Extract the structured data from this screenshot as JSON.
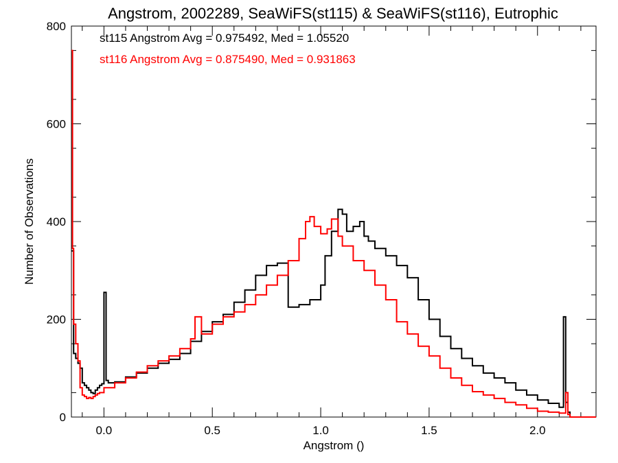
{
  "chart_data": {
    "type": "line",
    "title": "Angstrom, 2002289, SeaWiFS(st115) & SeaWiFS(st116), Eutrophic",
    "xlabel": "Angstrom ()",
    "ylabel": "Number of Observations",
    "xlim": [
      -0.15,
      2.27
    ],
    "ylim": [
      0,
      800
    ],
    "x_ticks": [
      0.0,
      0.5,
      1.0,
      1.5,
      2.0
    ],
    "x_tick_labels": [
      "0.0",
      "0.5",
      "1.0",
      "1.5",
      "2.0"
    ],
    "y_ticks": [
      0,
      200,
      400,
      600,
      800
    ],
    "y_tick_labels": [
      "0",
      "200",
      "400",
      "600",
      "800"
    ],
    "grid": false,
    "legend": "top-left",
    "annotations": [
      {
        "text": "st115 Angstrom Avg = 0.975492, Med = 1.05520",
        "color": "#000000"
      },
      {
        "text": "st116 Angstrom Avg = 0.875490, Med = 0.931863",
        "color": "#ff0000"
      }
    ],
    "series": [
      {
        "color": "#000000",
        "x": [
          -0.15,
          -0.14,
          -0.13,
          -0.12,
          -0.11,
          -0.1,
          -0.09,
          -0.08,
          -0.07,
          -0.06,
          -0.05,
          -0.04,
          -0.03,
          -0.02,
          -0.01,
          0.0,
          0.01,
          0.02,
          0.05,
          0.1,
          0.15,
          0.2,
          0.25,
          0.3,
          0.35,
          0.4,
          0.45,
          0.5,
          0.55,
          0.6,
          0.65,
          0.7,
          0.75,
          0.8,
          0.85,
          0.9,
          0.95,
          1.0,
          1.02,
          1.05,
          1.08,
          1.1,
          1.12,
          1.15,
          1.18,
          1.2,
          1.22,
          1.25,
          1.3,
          1.35,
          1.4,
          1.45,
          1.5,
          1.55,
          1.6,
          1.65,
          1.7,
          1.75,
          1.8,
          1.85,
          1.9,
          1.95,
          2.0,
          2.05,
          2.1,
          2.12,
          2.13,
          2.14,
          2.15,
          2.16,
          2.2,
          2.27
        ],
        "y": [
          340,
          130,
          120,
          110,
          100,
          70,
          65,
          60,
          55,
          50,
          48,
          55,
          60,
          65,
          68,
          255,
          75,
          70,
          72,
          82,
          90,
          100,
          110,
          118,
          130,
          155,
          175,
          195,
          210,
          235,
          260,
          290,
          310,
          315,
          225,
          230,
          240,
          270,
          330,
          380,
          425,
          415,
          380,
          390,
          400,
          370,
          360,
          345,
          330,
          310,
          285,
          240,
          200,
          165,
          140,
          120,
          105,
          90,
          80,
          70,
          55,
          45,
          35,
          28,
          20,
          205,
          30,
          10,
          0,
          0,
          0,
          0
        ]
      },
      {
        "color": "#ff0000",
        "x": [
          -0.15,
          -0.145,
          -0.14,
          -0.13,
          -0.12,
          -0.11,
          -0.1,
          -0.09,
          -0.08,
          -0.07,
          -0.06,
          -0.05,
          -0.04,
          -0.03,
          -0.02,
          0.0,
          0.05,
          0.1,
          0.15,
          0.2,
          0.25,
          0.3,
          0.35,
          0.4,
          0.42,
          0.45,
          0.5,
          0.55,
          0.6,
          0.65,
          0.7,
          0.75,
          0.8,
          0.85,
          0.9,
          0.93,
          0.95,
          0.97,
          1.0,
          1.03,
          1.05,
          1.08,
          1.1,
          1.15,
          1.2,
          1.25,
          1.3,
          1.35,
          1.4,
          1.45,
          1.5,
          1.55,
          1.6,
          1.65,
          1.7,
          1.75,
          1.8,
          1.85,
          1.9,
          1.95,
          2.0,
          2.05,
          2.1,
          2.13,
          2.14,
          2.15,
          2.16,
          2.2,
          2.27
        ],
        "y": [
          750,
          345,
          190,
          150,
          115,
          60,
          45,
          42,
          38,
          40,
          38,
          42,
          45,
          48,
          50,
          60,
          70,
          80,
          92,
          105,
          115,
          125,
          140,
          160,
          205,
          170,
          190,
          205,
          215,
          230,
          250,
          270,
          290,
          320,
          365,
          400,
          410,
          390,
          375,
          385,
          405,
          370,
          350,
          320,
          300,
          270,
          240,
          195,
          170,
          145,
          125,
          100,
          80,
          65,
          52,
          45,
          38,
          30,
          25,
          18,
          12,
          10,
          8,
          50,
          5,
          0,
          0,
          0,
          0
        ]
      }
    ]
  }
}
